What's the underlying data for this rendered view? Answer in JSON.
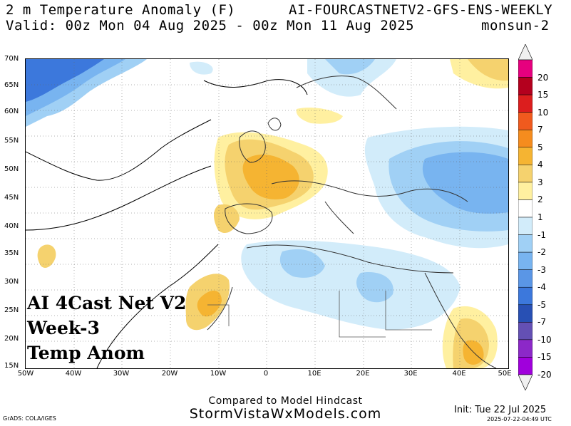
{
  "header": {
    "title_left": "2 m Temperature Anomaly (F)",
    "title_right": "AI-FOURCASTNETV2-GFS-ENS-WEEKLY",
    "valid": "Valid: 00z Mon 04 Aug 2025 - 00z Mon 11 Aug 2025",
    "run": "monsun-2"
  },
  "map": {
    "lat_ticks": [
      "70N",
      "65N",
      "60N",
      "55N",
      "50N",
      "45N",
      "40N",
      "35N",
      "30N",
      "25N",
      "20N",
      "15N"
    ],
    "lon_ticks": [
      "50W",
      "40W",
      "30W",
      "20W",
      "10W",
      "0",
      "10E",
      "20E",
      "30E",
      "40E",
      "50E"
    ],
    "overlay_lines": [
      "AI 4Cast Net V2",
      "Week-3",
      "Temp Anom"
    ]
  },
  "colorbar": {
    "labels": [
      "20",
      "15",
      "10",
      "7",
      "5",
      "4",
      "3",
      "2",
      "1",
      "-1",
      "-2",
      "-3",
      "-4",
      "-5",
      "-7",
      "-10",
      "-15",
      "-20"
    ],
    "colors": [
      "#f0f0f0",
      "#e6007e",
      "#b4001e",
      "#dc1e1e",
      "#f05a1e",
      "#f58c1e",
      "#f5b432",
      "#f5d26e",
      "#fff0a0",
      "#ffffff",
      "#d2ecfa",
      "#a0d0f5",
      "#78b4f0",
      "#5a96e6",
      "#3c78dc",
      "#2850b4",
      "#6450b4",
      "#8c28c8",
      "#a000dc",
      "#f0f0f0"
    ]
  },
  "footer": {
    "compare": "Compared to Model Hindcast",
    "site": "StormVistaWxModels.com",
    "grads": "GrADS: COLA/IGES",
    "init": "Init: Tue 22 Jul 2025",
    "stamp": "2025-07-22-04:49 UTC"
  }
}
